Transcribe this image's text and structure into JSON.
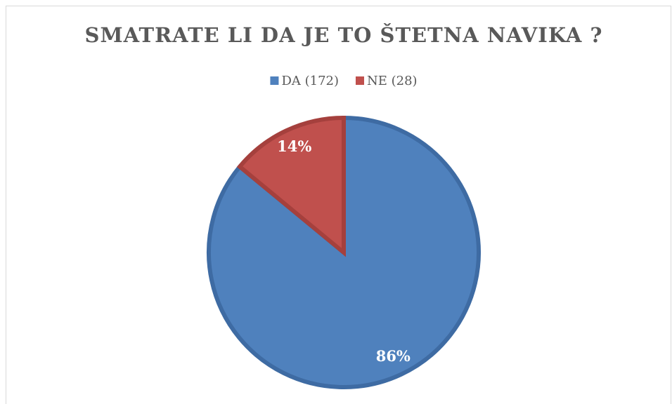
{
  "chart_data": {
    "type": "pie",
    "title": "SMATRATE LI DA JE TO ŠTETNA NAVIKA ?",
    "categories": [
      "DA (172)",
      "NE (28)"
    ],
    "values": [
      86,
      14
    ],
    "value_labels": [
      "86%",
      "14%"
    ],
    "colors": [
      "#4f81bd",
      "#c0504d"
    ],
    "edge_colors": [
      "#3e6ba3",
      "#a5403d"
    ],
    "legend": "top"
  }
}
